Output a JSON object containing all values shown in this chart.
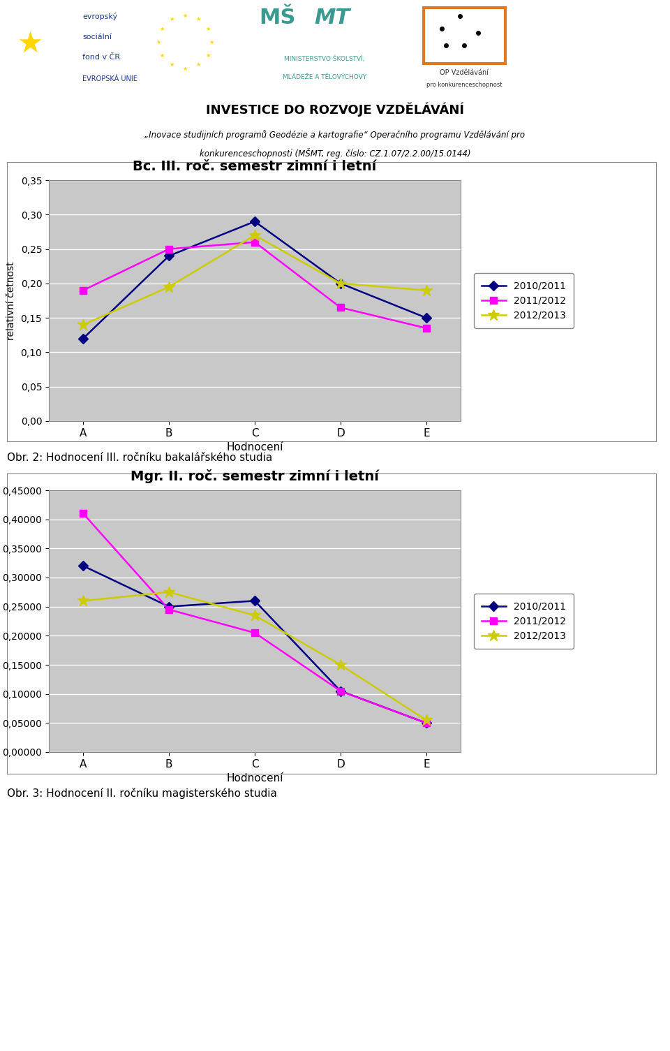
{
  "chart1": {
    "title": "Bc. III. roč. semestr zimní i letní",
    "categories": [
      "A",
      "B",
      "C",
      "D",
      "E"
    ],
    "series": {
      "2010/2011": [
        0.12,
        0.24,
        0.29,
        0.2,
        0.15
      ],
      "2011/2012": [
        0.19,
        0.25,
        0.26,
        0.165,
        0.135
      ],
      "2012/2013": [
        0.14,
        0.195,
        0.27,
        0.2,
        0.19
      ]
    },
    "colors": {
      "2010/2011": "#000080",
      "2011/2012": "#FF00FF",
      "2012/2013": "#CCCC00"
    },
    "markers": {
      "2010/2011": "D",
      "2011/2012": "s",
      "2012/2013": "*"
    },
    "ylabel": "relativní četnost",
    "xlabel": "Hodnocení",
    "ylim": [
      0.0,
      0.35
    ],
    "yticks": [
      0.0,
      0.05,
      0.1,
      0.15,
      0.2,
      0.25,
      0.3,
      0.35
    ],
    "ytick_labels": [
      "0,00",
      "0,05",
      "0,10",
      "0,15",
      "0,20",
      "0,25",
      "0,30",
      "0,35"
    ]
  },
  "chart2": {
    "title": "Mgr. II. roč. semestr zimní i letní",
    "categories": [
      "A",
      "B",
      "C",
      "D",
      "E"
    ],
    "series": {
      "2010/2011": [
        0.32,
        0.25,
        0.26,
        0.105,
        0.05
      ],
      "2011/2012": [
        0.41,
        0.245,
        0.205,
        0.105,
        0.05
      ],
      "2012/2013": [
        0.26,
        0.275,
        0.235,
        0.15,
        0.055
      ]
    },
    "colors": {
      "2010/2011": "#000080",
      "2011/2012": "#FF00FF",
      "2012/2013": "#CCCC00"
    },
    "markers": {
      "2010/2011": "D",
      "2011/2012": "s",
      "2012/2013": "*"
    },
    "ylabel": "relativní četnost",
    "xlabel": "Hodnocení",
    "ylim": [
      0.0,
      0.45
    ],
    "yticks": [
      0.0,
      0.05,
      0.1,
      0.15,
      0.2,
      0.25,
      0.3,
      0.35,
      0.4,
      0.45
    ],
    "ytick_labels": [
      "0,00000",
      "0,05000",
      "0,10000",
      "0,15000",
      "0,20000",
      "0,25000",
      "0,30000",
      "0,35000",
      "0,40000",
      "0,45000"
    ]
  },
  "header_line1": "„Inovace studijních programů Geodézie a kartografie“ Operačního programu Vzdělávání pro",
  "header_line2": "konkurenceschopnosti (MŠMT, reg. číslo: CZ.1.07/2.2.00/15.0144)",
  "invest_text": "INVESTICE DO ROZVOJE VZDĚLÁVÁNÍ",
  "caption1": "Obr. 2: Hodnocení III. ročníku bakalářského studia",
  "caption2": "Obr. 3: Hodnocení II. ročníku magisterského studia",
  "plot_bg_color": "#C8C8C8",
  "line_width": 1.8,
  "marker_size": 7,
  "star_size": 12,
  "series_order": [
    "2010/2011",
    "2011/2012",
    "2012/2013"
  ],
  "fig_width": 9.6,
  "fig_height": 15.05,
  "dpi": 100
}
